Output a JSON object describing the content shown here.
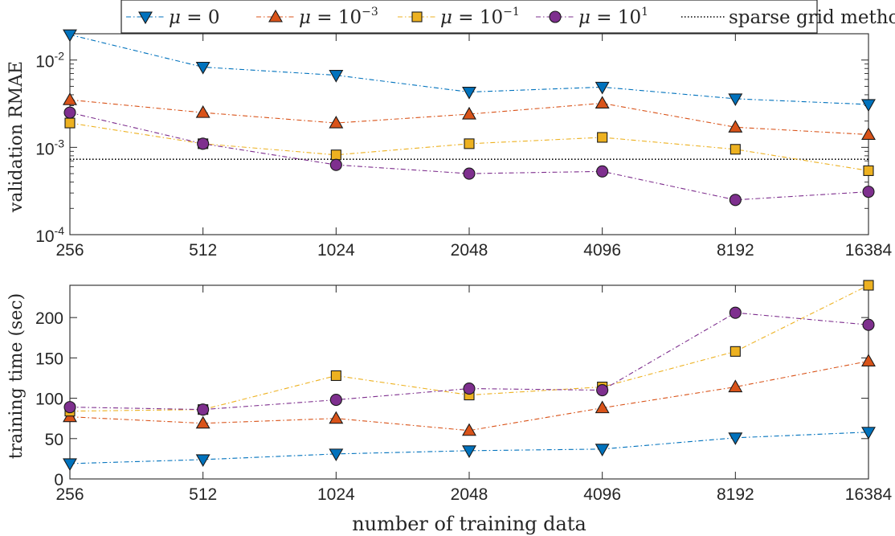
{
  "chart_data": [
    {
      "type": "line",
      "id": "rmae",
      "y_scale": "log",
      "xlabel": "",
      "ylabel": "validation RMAE",
      "categories": [
        "256",
        "512",
        "1024",
        "2048",
        "4096",
        "8192",
        "16384"
      ],
      "x_tick_labels": [
        "256",
        "512",
        "1024",
        "2048",
        "4096",
        "8192",
        "16384"
      ],
      "y_ticks": [
        {
          "base": "10",
          "exp": "-2",
          "value": 0.01
        },
        {
          "base": "10",
          "exp": "-3",
          "value": 0.001
        },
        {
          "base": "10",
          "exp": "-4",
          "value": 0.0001
        }
      ],
      "ylim": [
        0.0001,
        0.02
      ],
      "grid": false,
      "series": [
        {
          "name": "mu0",
          "values": [
            0.0195,
            0.0083,
            0.0067,
            0.0043,
            0.0049,
            0.0036,
            0.0031
          ]
        },
        {
          "name": "mu1e-3",
          "values": [
            0.0035,
            0.0025,
            0.0019,
            0.0024,
            0.0032,
            0.0017,
            0.0014
          ]
        },
        {
          "name": "mu1e-1",
          "values": [
            0.0019,
            0.0011,
            0.00082,
            0.0011,
            0.0013,
            0.00095,
            0.00054
          ]
        },
        {
          "name": "mu1e1",
          "values": [
            0.0025,
            0.0011,
            0.00063,
            0.0005,
            0.00053,
            0.00025,
            0.00031
          ]
        }
      ],
      "reference_line": {
        "name": "sparse grid method",
        "value": 0.00073
      }
    },
    {
      "type": "line",
      "id": "time",
      "y_scale": "linear",
      "xlabel": "number of training data",
      "ylabel": "training time (sec)",
      "categories": [
        "256",
        "512",
        "1024",
        "2048",
        "4096",
        "8192",
        "16384"
      ],
      "x_tick_labels": [
        "256",
        "512",
        "1024",
        "2048",
        "4096",
        "8192",
        "16384"
      ],
      "y_tick_labels": [
        "0",
        "50",
        "100",
        "150",
        "200"
      ],
      "ylim": [
        0,
        240
      ],
      "grid": false,
      "series": [
        {
          "name": "mu0",
          "values": [
            19,
            24,
            31,
            35,
            37,
            51,
            58
          ]
        },
        {
          "name": "mu1e-3",
          "values": [
            77,
            69,
            75,
            60,
            88,
            114,
            146
          ]
        },
        {
          "name": "mu1e-1",
          "values": [
            84,
            86,
            128,
            104,
            114,
            158,
            240
          ]
        },
        {
          "name": "mu1e1",
          "values": [
            89,
            86,
            98,
            112,
            110,
            206,
            191
          ]
        }
      ]
    }
  ],
  "legend": {
    "placement": "top-center",
    "entries": [
      {
        "key": "mu0",
        "math_var": "μ",
        "eq": " = ",
        "base": "0",
        "exp": "",
        "color": "#0072BD",
        "marker": "triangle-down"
      },
      {
        "key": "mu1e-3",
        "math_var": "μ",
        "eq": " = ",
        "base": "10",
        "exp": "−3",
        "color": "#D95319",
        "marker": "triangle-up"
      },
      {
        "key": "mu1e-1",
        "math_var": "μ",
        "eq": " = ",
        "base": "10",
        "exp": "−1",
        "color": "#EDB120",
        "marker": "square"
      },
      {
        "key": "mu1e1",
        "math_var": "μ",
        "eq": " = ",
        "base": "10",
        "exp": "1",
        "color": "#7E2F8E",
        "marker": "circle"
      },
      {
        "key": "ref",
        "label": "sparse grid method",
        "color": "#000000",
        "marker": "none"
      }
    ]
  }
}
